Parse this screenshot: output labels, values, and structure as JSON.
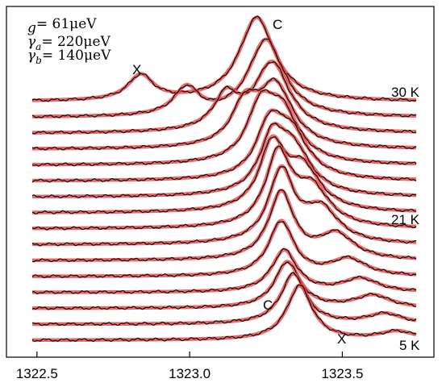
{
  "chart_data": {
    "type": "line",
    "xlabel": "",
    "ylabel": "",
    "xlim": [
      1322.4,
      1323.8
    ],
    "x_ticks": [
      {
        "value": 1322.5,
        "label": "1322.5"
      },
      {
        "value": 1323.0,
        "label": "1323.0"
      },
      {
        "value": 1323.5,
        "label": "1323.5"
      }
    ],
    "parameters": [
      {
        "symbol": "g",
        "sub": "",
        "value": "= 61μeV"
      },
      {
        "symbol": "γ",
        "sub": "a",
        "value": "= 220μeV"
      },
      {
        "symbol": "γ",
        "sub": "b",
        "value": "= 140μeV"
      }
    ],
    "annotations": [
      {
        "text": "C",
        "x": 1323.25,
        "trace": 0,
        "role": "peak"
      },
      {
        "text": "X",
        "x": 1322.85,
        "trace": 0,
        "role": "peak"
      },
      {
        "text": "C",
        "x": 1323.37,
        "trace": 15,
        "role": "peak"
      },
      {
        "text": "X",
        "x": 1323.68,
        "trace": 15,
        "role": "peak"
      }
    ],
    "temperature_labels": [
      {
        "text": "30 K",
        "trace": 0
      },
      {
        "text": "21 K",
        "trace": 8
      },
      {
        "text": "5 K",
        "trace": 15
      }
    ],
    "series_style": {
      "experiment": {
        "color": "#000000"
      },
      "fit": {
        "color": "#e84c4c"
      }
    },
    "traces": [
      {
        "X": 1322.84,
        "C": 1323.22,
        "aX": 0.3,
        "aC": 1.0
      },
      {
        "X": 1322.99,
        "C": 1323.25,
        "aX": 0.33,
        "aC": 0.92
      },
      {
        "X": 1323.12,
        "C": 1323.27,
        "aX": 0.4,
        "aC": 0.82
      },
      {
        "X": 1323.18,
        "C": 1323.28,
        "aX": 0.45,
        "aC": 0.74
      },
      {
        "X": 1323.23,
        "C": 1323.3,
        "aX": 0.55,
        "aC": 0.62
      },
      {
        "X": 1323.26,
        "C": 1323.33,
        "aX": 0.55,
        "aC": 0.55
      },
      {
        "X": 1323.27,
        "C": 1323.34,
        "aX": 0.6,
        "aC": 0.52
      },
      {
        "X": 1323.27,
        "C": 1323.37,
        "aX": 0.75,
        "aC": 0.5
      },
      {
        "X": 1323.29,
        "C": 1323.4,
        "aX": 0.85,
        "aC": 0.45
      },
      {
        "X": 1323.3,
        "C": 1323.43,
        "aX": 0.85,
        "aC": 0.4
      },
      {
        "X": 1323.3,
        "C": 1323.48,
        "aX": 0.8,
        "aC": 0.3
      },
      {
        "X": 1323.3,
        "C": 1323.52,
        "aX": 0.65,
        "aC": 0.2
      },
      {
        "X": 1323.31,
        "C": 1323.56,
        "aX": 0.5,
        "aC": 0.16
      },
      {
        "X": 1323.32,
        "C": 1323.6,
        "aX": 0.55,
        "aC": 0.15
      },
      {
        "X": 1323.34,
        "C": 1323.64,
        "aX": 0.6,
        "aC": 0.12
      },
      {
        "X": 1323.36,
        "C": 1323.68,
        "aX": 0.65,
        "aC": 0.1
      }
    ]
  }
}
